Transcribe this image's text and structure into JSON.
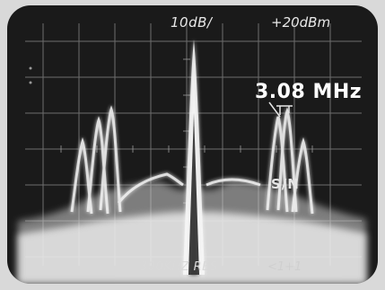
{
  "readout": {
    "scale": "10dB/",
    "reference_level": "+20dBm",
    "resolution": "300KHZ RES",
    "side_marking": "<1+1"
  },
  "annotations": {
    "frequency": "3.08 MHz",
    "signal_to_noise": "S/N"
  },
  "colors": {
    "screen": "#1a1a1a",
    "trace": "#f4f4f4",
    "graticule": "#8a8a8a",
    "bezel": "#d9d9d9"
  }
}
